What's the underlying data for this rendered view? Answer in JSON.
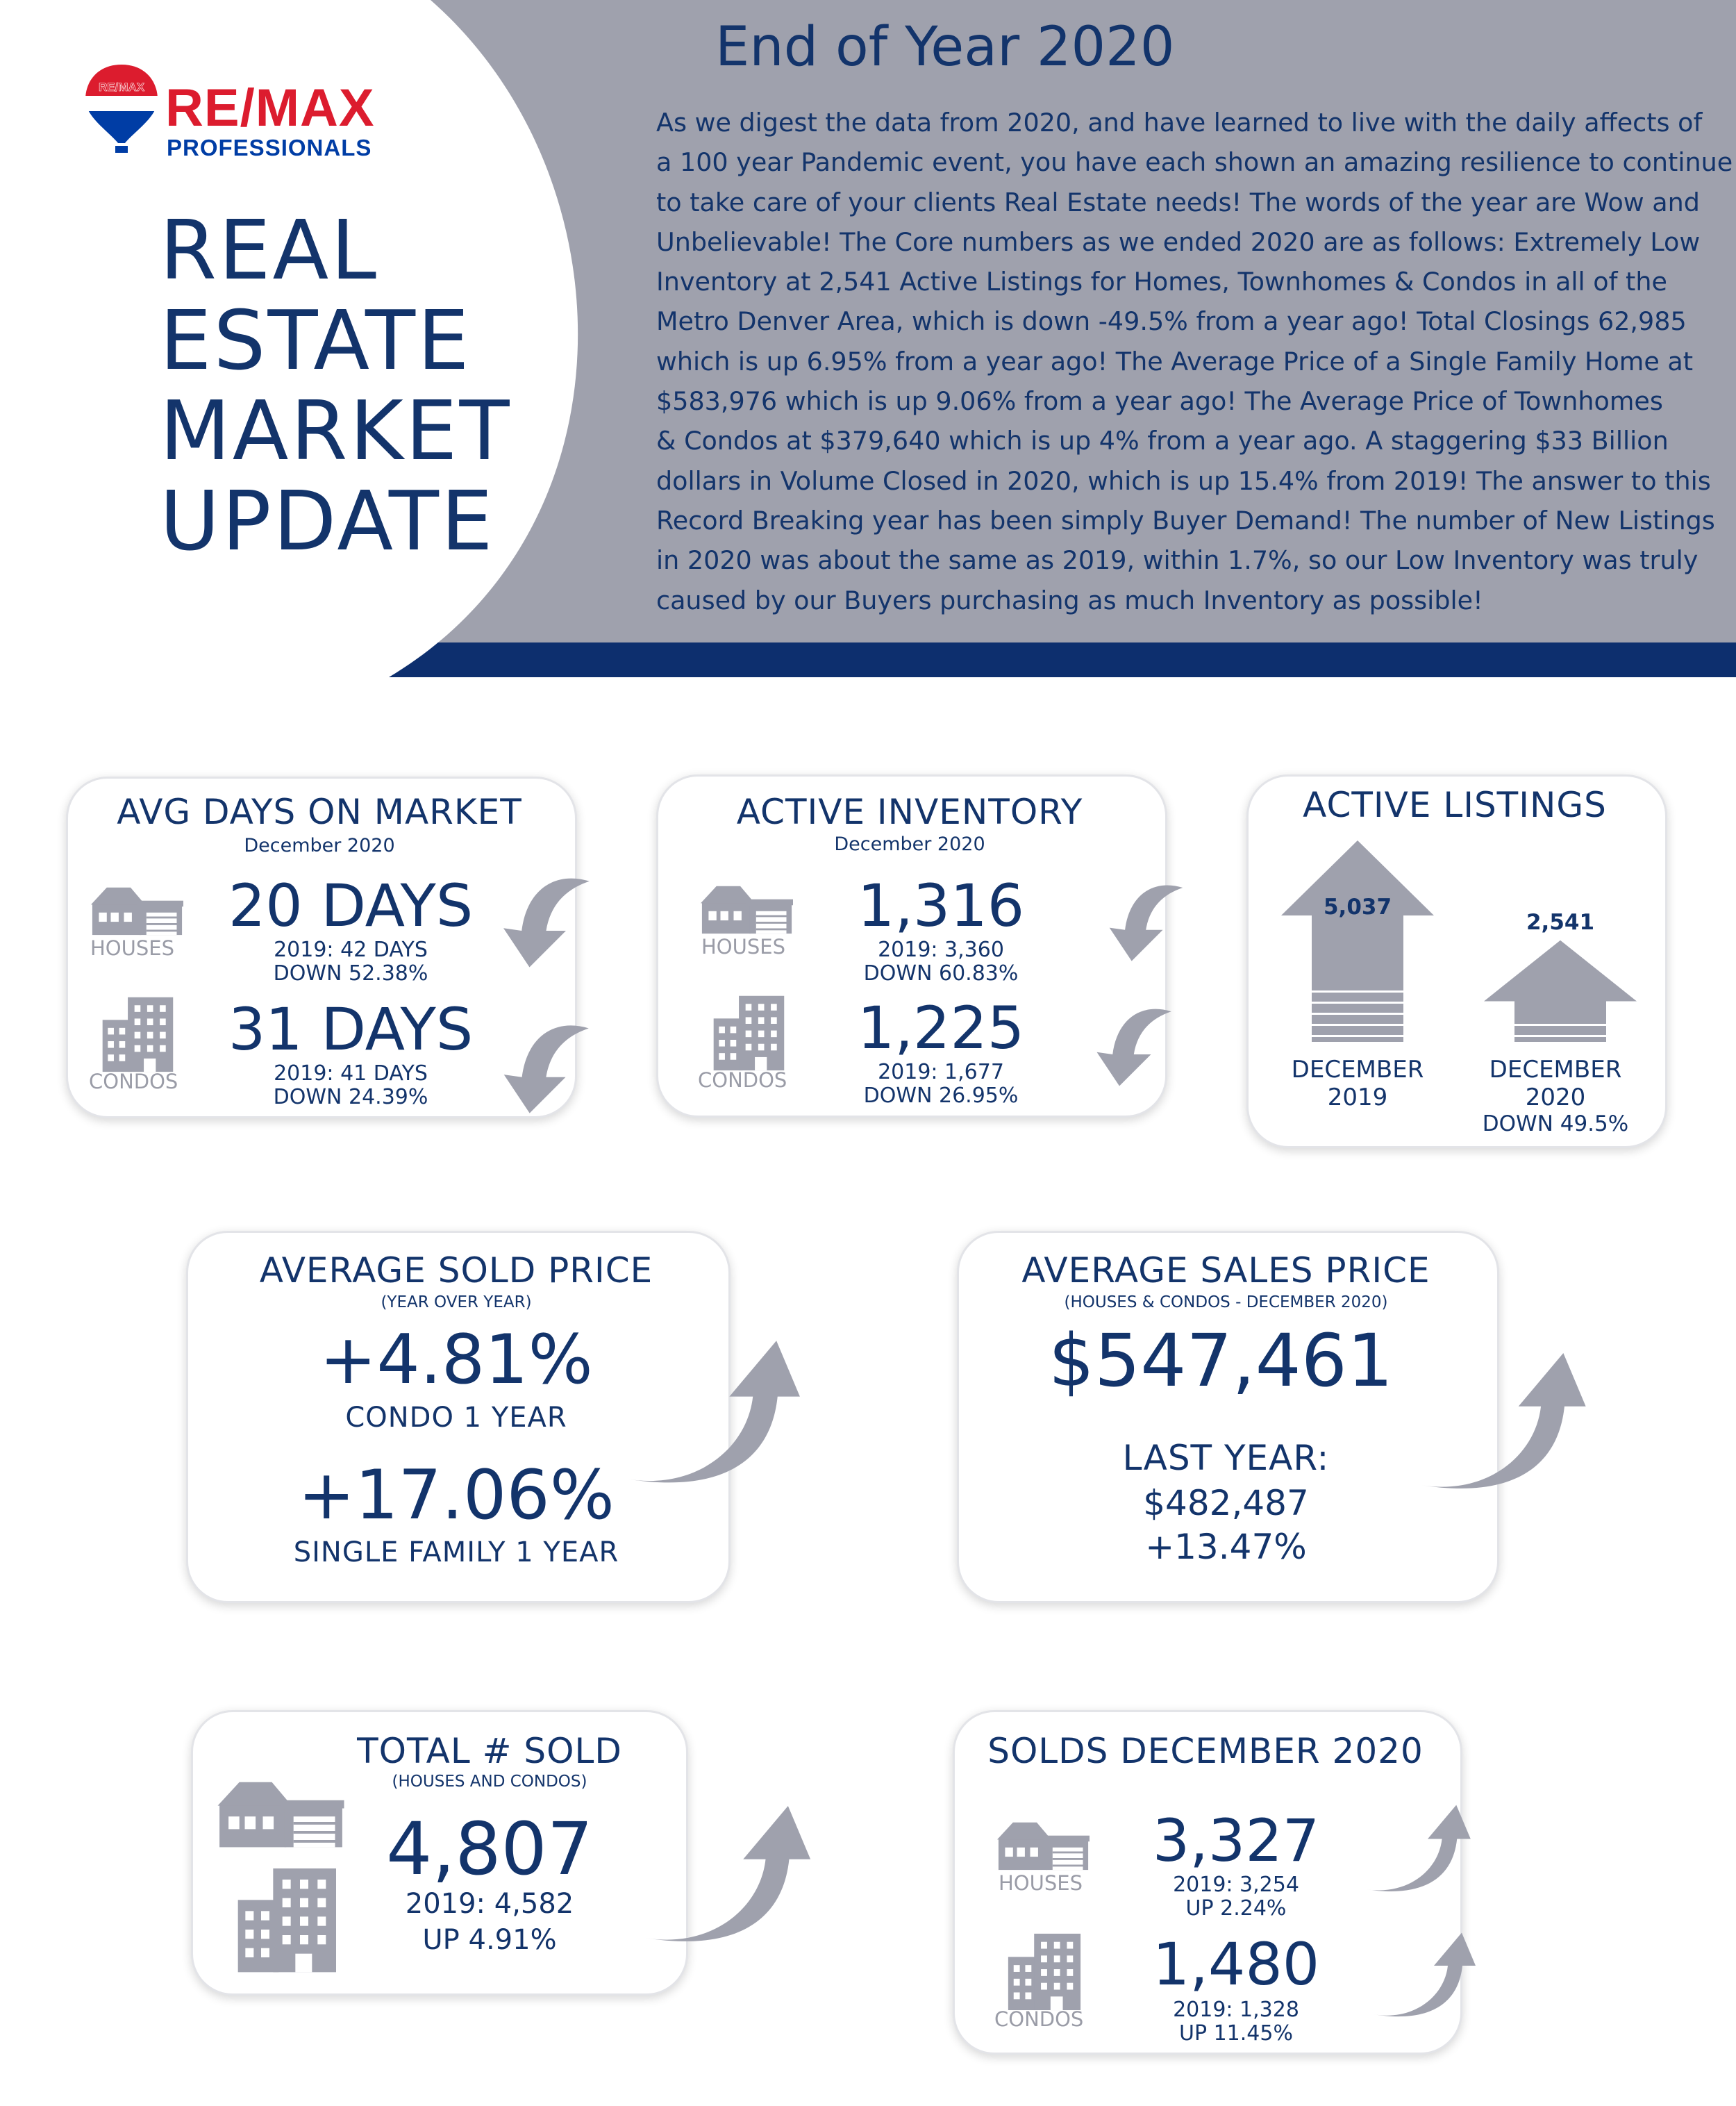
{
  "brand": {
    "balloon_label": "RE/MAX",
    "name": "RE/MAX",
    "subtitle": "PROFESSIONALS",
    "red": "#dc1c2e",
    "blue": "#003da5",
    "navy": "#13346b",
    "gray": "#9fa1ad"
  },
  "hero": {
    "line1": "REAL",
    "line2": "ESTATE",
    "line3": "MARKET",
    "line4": "UPDATE"
  },
  "header": {
    "title": "End of Year 2020",
    "intro_lines": [
      "As we digest the data from 2020, and have learned to live with the daily affects of",
      "a 100 year Pandemic event, you have each shown an amazing resilience to continue",
      "to take care of your clients Real Estate needs! The words of the year are Wow and",
      "Unbelievable! The Core numbers as we ended 2020 are as follows: Extremely Low",
      "Inventory at 2,541 Active Listings for Homes, Townhomes & Condos in all of the",
      "Metro Denver Area, which is down -49.5% from a year ago! Total Closings 62,985",
      "which is up 6.95% from a year ago! The Average Price of a Single Family Home at",
      "$583,976 which is up 9.06% from a year ago! The Average Price of Townhomes",
      "& Condos at $379,640 which is up 4% from a year ago. A staggering $33 Billion",
      "dollars in Volume Closed in 2020, which is up 15.4% from 2019! The answer to this",
      "Record Breaking year has been simply Buyer Demand! The number of New Listings",
      "in 2020 was about the same as 2019, within 1.7%, so our Low Inventory was truly",
      "caused by our Buyers purchasing as much Inventory as possible!"
    ]
  },
  "labels": {
    "houses": "HOUSES",
    "condos": "CONDOS"
  },
  "days_on_market": {
    "title": "AVG DAYS ON MARKET",
    "subtitle": "December 2020",
    "houses": {
      "value": "20 DAYS",
      "prior": "2019: 42 DAYS",
      "change": "DOWN 52.38%"
    },
    "condos": {
      "value": "31 DAYS",
      "prior": "2019: 41 DAYS",
      "change": "DOWN 24.39%"
    }
  },
  "active_inventory": {
    "title": "ACTIVE INVENTORY",
    "subtitle": "December 2020",
    "houses": {
      "value": "1,316",
      "prior": "2019: 3,360",
      "change": "DOWN 60.83%"
    },
    "condos": {
      "value": "1,225",
      "prior": "2019: 1,677",
      "change": "DOWN 26.95%"
    }
  },
  "active_listings": {
    "title": "ACTIVE LISTINGS",
    "bars": [
      {
        "value": "5,037",
        "label_line1": "DECEMBER",
        "label_line2": "2019",
        "note": ""
      },
      {
        "value": "2,541",
        "label_line1": "DECEMBER",
        "label_line2": "2020",
        "note": "DOWN 49.5%"
      }
    ]
  },
  "avg_sold_price": {
    "title": "AVERAGE SOLD PRICE",
    "subtitle": "(YEAR OVER YEAR)",
    "condo_value": "+4.81%",
    "condo_label": "CONDO 1 YEAR",
    "sf_value": "+17.06%",
    "sf_label": "SINGLE FAMILY 1 YEAR"
  },
  "avg_sales_price": {
    "title": "AVERAGE SALES PRICE",
    "subtitle": "(HOUSES & CONDOS - DECEMBER 2020)",
    "value": "$547,461",
    "last_year_label": "LAST YEAR:",
    "last_year_value": "$482,487",
    "change": "+13.47%"
  },
  "total_sold": {
    "title": "TOTAL # SOLD",
    "subtitle": "(HOUSES AND CONDOS)",
    "value": "4,807",
    "prior": "2019: 4,582",
    "change": "UP 4.91%"
  },
  "solds_december": {
    "title": "SOLDS DECEMBER 2020",
    "houses": {
      "value": "3,327",
      "prior": "2019: 3,254",
      "change": "UP 2.24%"
    },
    "condos": {
      "value": "1,480",
      "prior": "2019: 1,328",
      "change": "UP 11.45%"
    }
  }
}
